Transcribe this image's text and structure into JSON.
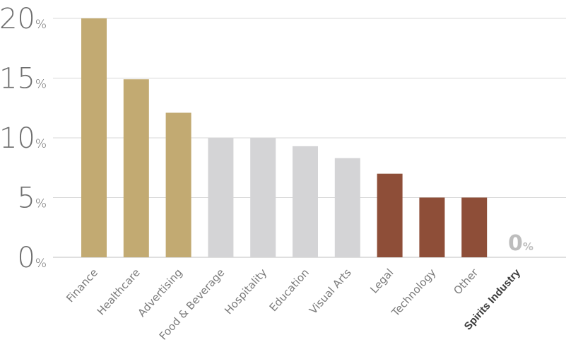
{
  "chart_data": {
    "type": "bar",
    "title": "",
    "xlabel": "",
    "ylabel": "",
    "ylim": [
      0,
      20
    ],
    "grid": true,
    "y_ticks": [
      {
        "value": 0,
        "label": "0",
        "suffix": "%"
      },
      {
        "value": 5,
        "label": "5",
        "suffix": "%"
      },
      {
        "value": 10,
        "label": "10",
        "suffix": "%"
      },
      {
        "value": 15,
        "label": "15",
        "suffix": "%"
      },
      {
        "value": 20,
        "label": "20",
        "suffix": "%"
      }
    ],
    "categories": [
      "Finance",
      "Healthcare",
      "Advertising",
      "Food & Beverage",
      "Hospitality",
      "Education",
      "Visual Arts",
      "Legal",
      "Technology",
      "Other",
      "Spirits Industry"
    ],
    "values": [
      20,
      14.9,
      12.1,
      10,
      10,
      9.3,
      8.3,
      7,
      5,
      5,
      0
    ],
    "bar_colors": [
      "#c2aa72",
      "#c2aa72",
      "#c2aa72",
      "#d4d4d6",
      "#d4d4d6",
      "#d4d4d6",
      "#d4d4d6",
      "#8e4e38",
      "#8e4e38",
      "#8e4e38",
      "#8e4e38"
    ],
    "highlight_category": "Spirits Industry",
    "annotation": {
      "category": "Spirits Industry",
      "text": "0",
      "suffix": "%"
    }
  }
}
